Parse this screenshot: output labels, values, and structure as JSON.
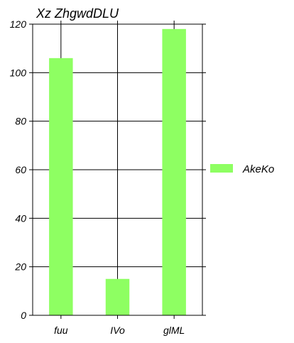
{
  "chart_data": {
    "type": "bar",
    "title": "Xz ZhgwdDLU",
    "xlabel": "",
    "ylabel": "",
    "categories": [
      "fuu",
      "IVo",
      "glML"
    ],
    "series": [
      {
        "name": "AkeKo",
        "values": [
          106,
          15,
          118
        ],
        "color": "#8eff62"
      }
    ],
    "ylim": [
      0,
      120
    ],
    "yticks": [
      0,
      20,
      40,
      60,
      80,
      100,
      120
    ],
    "grid": true,
    "legend": "right"
  }
}
